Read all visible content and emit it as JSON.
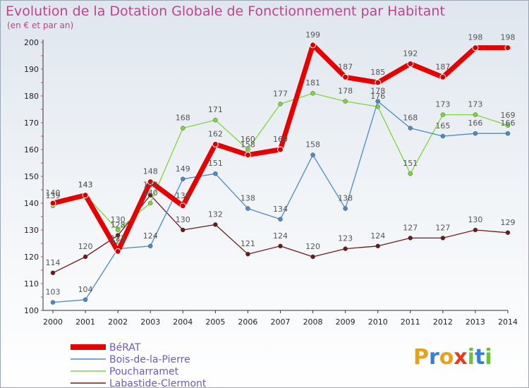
{
  "chart_data": {
    "type": "line",
    "title": "Evolution de la Dotation Globale de Fonctionnement par Habitant",
    "subtitle": "(en € et par an)",
    "xlabel": "",
    "ylabel": "",
    "ylim": [
      100,
      200
    ],
    "yticks": [
      100,
      110,
      120,
      130,
      140,
      150,
      160,
      170,
      180,
      190,
      200
    ],
    "categories": [
      "2000",
      "2001",
      "2002",
      "2003",
      "2004",
      "2005",
      "2006",
      "2007",
      "2008",
      "2009",
      "2010",
      "2011",
      "2012",
      "2013",
      "2014"
    ],
    "series": [
      {
        "name": "BéRAT",
        "color": "#e60000",
        "values": [
          140,
          143,
          122,
          148,
          139,
          162,
          158,
          160,
          199,
          187,
          185,
          192,
          187,
          198,
          198
        ]
      },
      {
        "name": "Bois-de-la-Pierre",
        "color": "#4a8bc9",
        "values": [
          103,
          104,
          123,
          124,
          149,
          151,
          138,
          134,
          158,
          138,
          178,
          168,
          165,
          166,
          166
        ]
      },
      {
        "name": "Poucharramet",
        "color": "#7fd63a",
        "values": [
          139,
          143,
          130,
          140,
          168,
          171,
          160,
          177,
          181,
          178,
          176,
          151,
          173,
          173,
          169
        ]
      },
      {
        "name": "Labastide-Clermont",
        "color": "#6b1a1a",
        "values": [
          114,
          120,
          128,
          143,
          130,
          132,
          121,
          124,
          120,
          123,
          124,
          127,
          127,
          130,
          129
        ]
      }
    ],
    "legend_position": "bottom-left",
    "grid": false
  },
  "logo": {
    "letters": [
      "P",
      "r",
      "o",
      "x",
      "i",
      "t",
      "i"
    ],
    "colors": [
      "#e8a21a",
      "#3a7fd6",
      "#e8a21a",
      "#e63a1a",
      "#6ac23a",
      "#3a7fd6",
      "#6ac23a"
    ]
  }
}
